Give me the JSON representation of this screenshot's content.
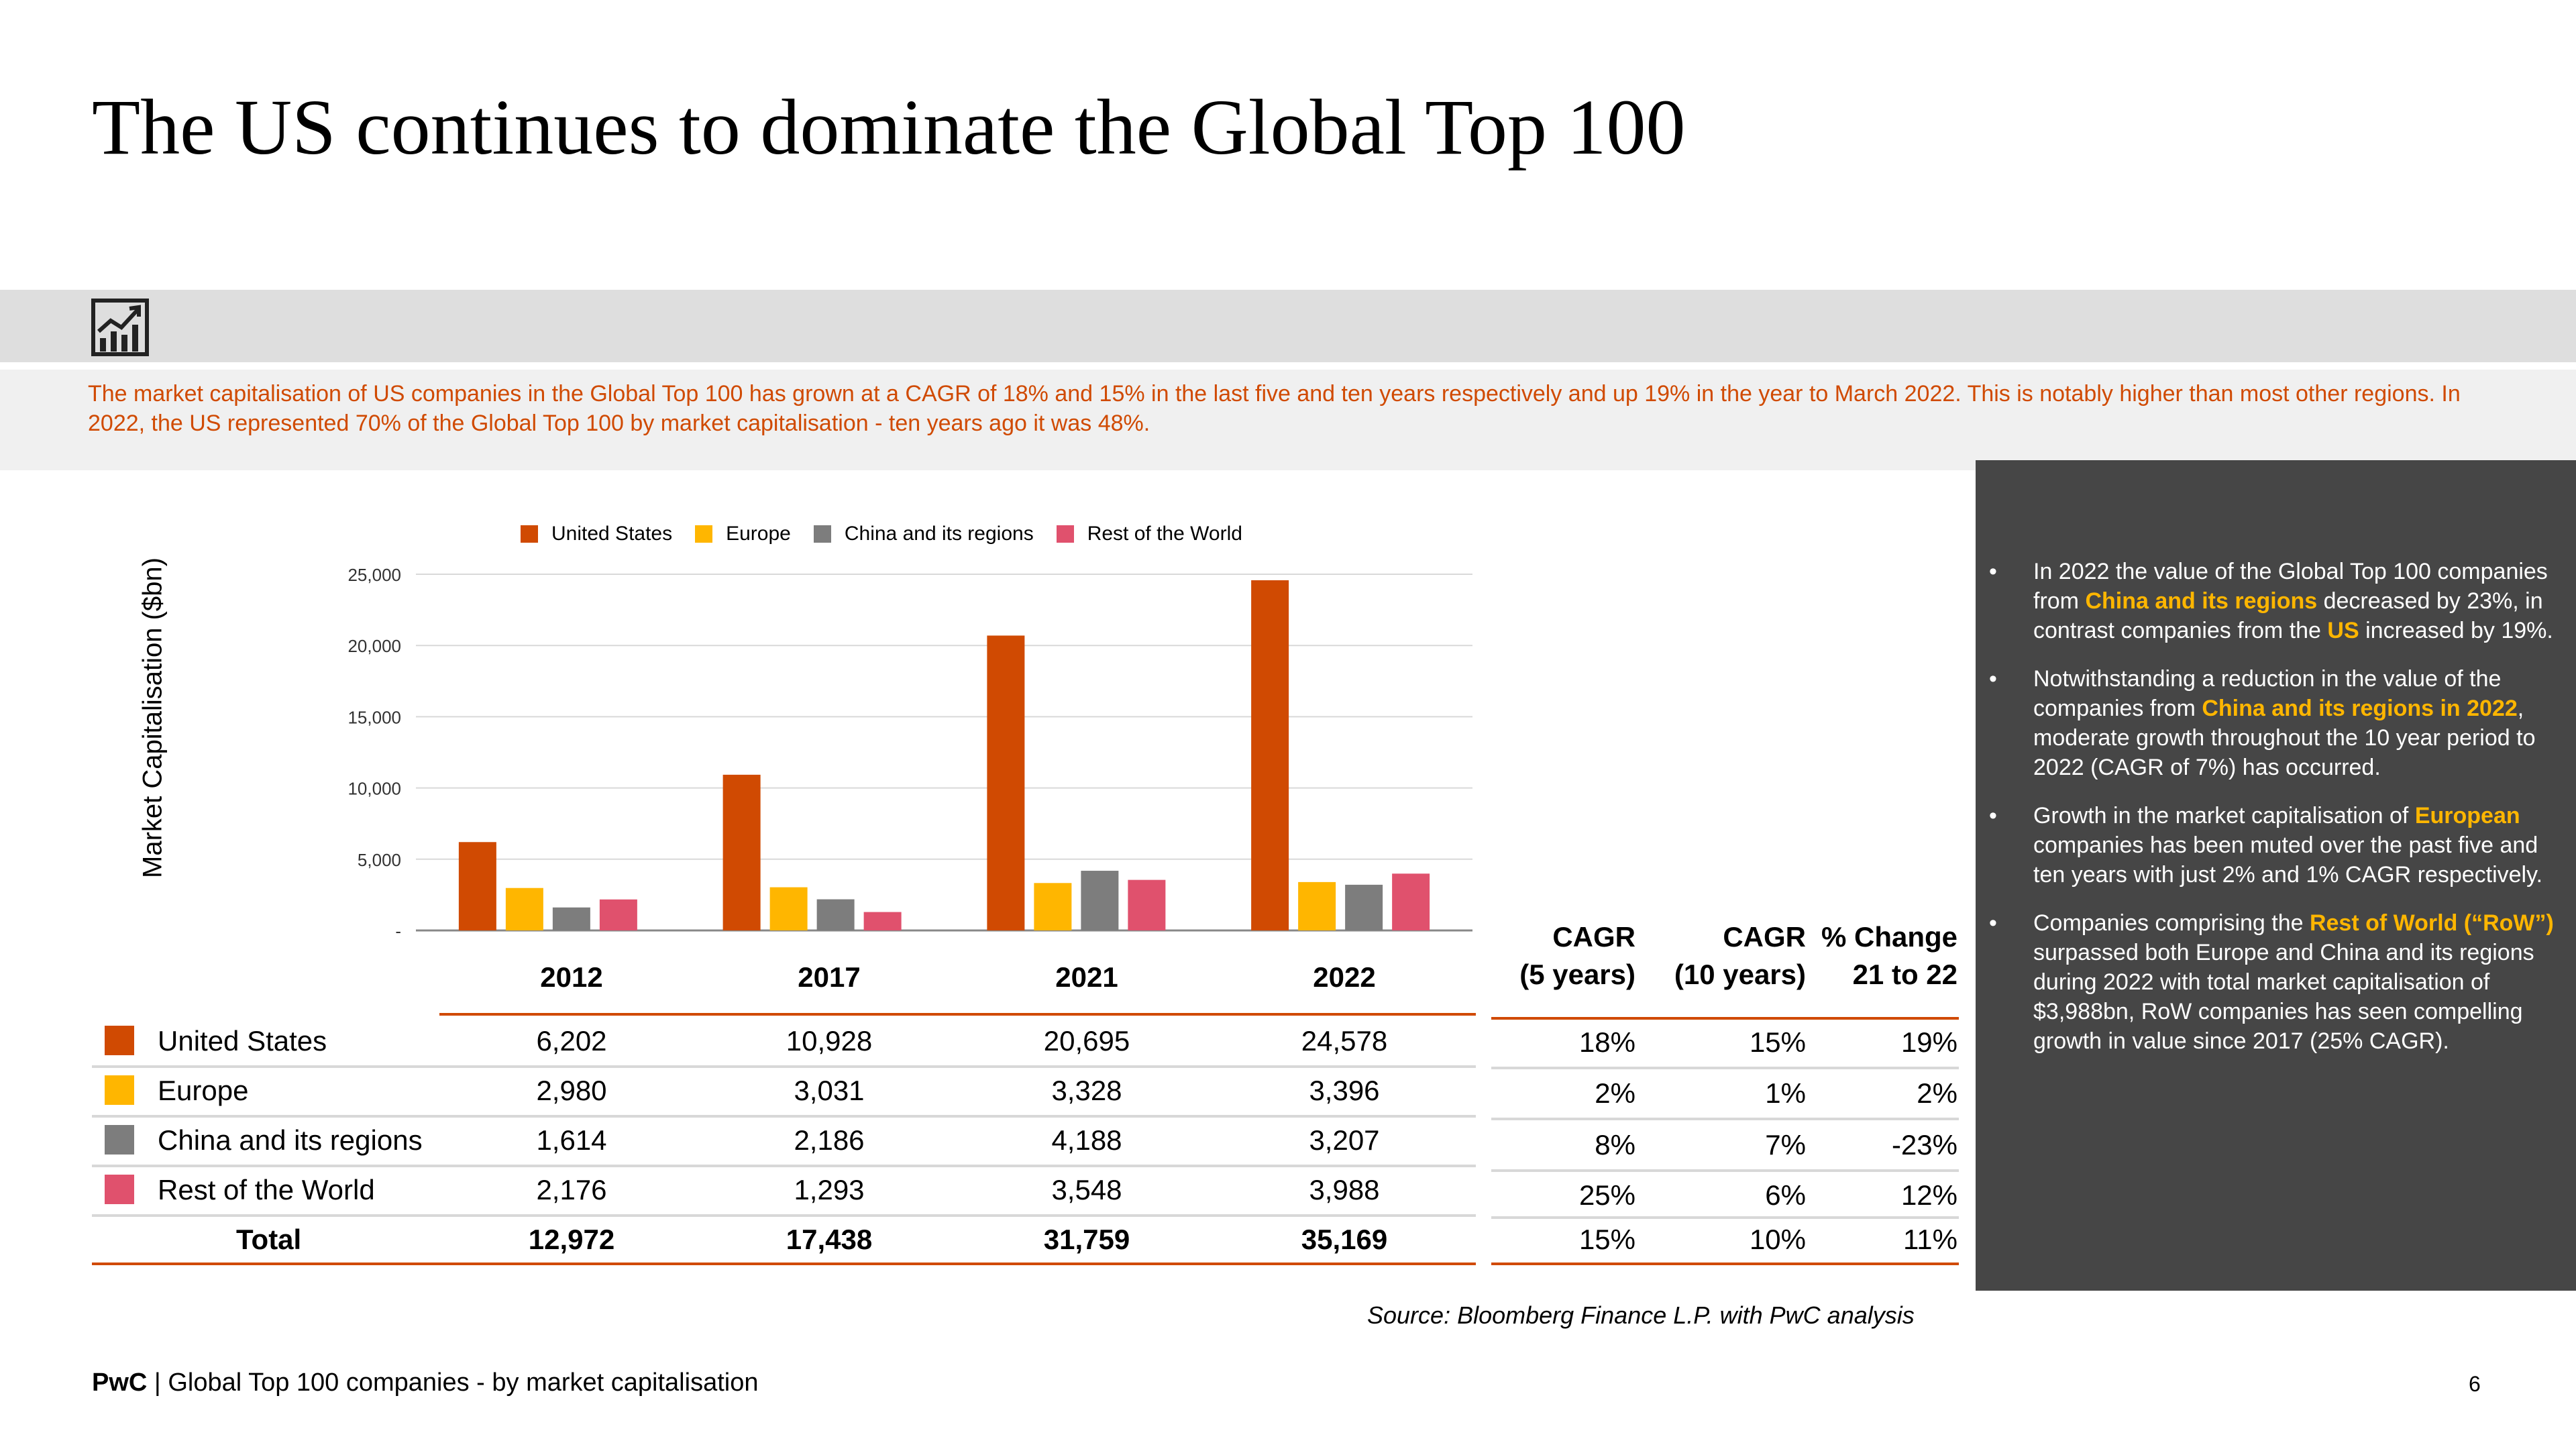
{
  "title": "The US continues to dominate the Global Top 100",
  "icon": "trend-chart-icon",
  "summary": "The market capitalisation of US companies in the Global Top 100 has grown at a CAGR of 18% and 15% in the last five and ten years respectively and up 19% in the year to March 2022. This is notably higher than most other regions. In 2022, the US represented 70% of the Global Top 100 by market capitalisation - ten years ago it was 48%.",
  "chart_data": {
    "type": "bar",
    "ylabel": "Market Capitalisation ($bn)",
    "ylim": [
      0,
      25000
    ],
    "yticks": [
      "-",
      "5,000",
      "10,000",
      "15,000",
      "20,000",
      "25,000"
    ],
    "grid": true,
    "legend_position": "top",
    "categories": [
      "2012",
      "2017",
      "2021",
      "2022"
    ],
    "series": [
      {
        "name": "United States",
        "color": "#d04a02",
        "values": [
          6202,
          10928,
          20695,
          24578
        ]
      },
      {
        "name": "Europe",
        "color": "#ffb600",
        "values": [
          2980,
          3031,
          3328,
          3396
        ]
      },
      {
        "name": "China and its regions",
        "color": "#7d7d7d",
        "values": [
          1614,
          2186,
          4188,
          3207
        ]
      },
      {
        "name": "Rest of the World",
        "color": "#e0516d",
        "values": [
          2176,
          1293,
          3548,
          3988
        ]
      }
    ]
  },
  "table": {
    "years": [
      "2012",
      "2017",
      "2021",
      "2022"
    ],
    "growth_headers": [
      {
        "line1": "CAGR",
        "line2": "(5 years)"
      },
      {
        "line1": "CAGR",
        "line2": "(10 years)"
      },
      {
        "line1": "% Change",
        "line2": "21 to 22"
      }
    ],
    "rows": [
      {
        "label": "United States",
        "color": "#d04a02",
        "values": [
          "6,202",
          "10,928",
          "20,695",
          "24,578"
        ],
        "growth": [
          "18%",
          "15%",
          "19%"
        ]
      },
      {
        "label": "Europe",
        "color": "#ffb600",
        "values": [
          "2,980",
          "3,031",
          "3,328",
          "3,396"
        ],
        "growth": [
          "2%",
          "1%",
          "2%"
        ]
      },
      {
        "label": "China and its regions",
        "color": "#7d7d7d",
        "values": [
          "1,614",
          "2,186",
          "4,188",
          "3,207"
        ],
        "growth": [
          "8%",
          "7%",
          "-23%"
        ]
      },
      {
        "label": "Rest of the World",
        "color": "#e0516d",
        "values": [
          "2,176",
          "1,293",
          "3,548",
          "3,988"
        ],
        "growth": [
          "25%",
          "6%",
          "12%"
        ]
      }
    ],
    "total": {
      "label": "Total",
      "values": [
        "12,972",
        "17,438",
        "31,759",
        "35,169"
      ],
      "growth": [
        "15%",
        "10%",
        "11%"
      ]
    }
  },
  "bullets": [
    [
      {
        "t": "In 2022 the value of the Global Top 100 companies from "
      },
      {
        "t": "China and its regions",
        "hl": true
      },
      {
        "t": " decreased by 23%, in contrast companies from the "
      },
      {
        "t": "US",
        "hl": true
      },
      {
        "t": " increased by 19%."
      }
    ],
    [
      {
        "t": "Notwithstanding a reduction in the value of the companies from "
      },
      {
        "t": "China and its regions in 2022",
        "hl": true
      },
      {
        "t": ", moderate growth throughout the 10 year period to 2022 (CAGR of 7%) has occurred."
      }
    ],
    [
      {
        "t": "Growth in the market capitalisation of "
      },
      {
        "t": "European",
        "hl": true
      },
      {
        "t": " companies has been muted over the past five and ten years with just 2% and 1% CAGR respectively."
      }
    ],
    [
      {
        "t": "Companies comprising the "
      },
      {
        "t": "Rest of World (“RoW”)",
        "hl": true
      },
      {
        "t": " surpassed both Europe and China and its regions during 2022 with total market capitalisation of $3,988bn, RoW companies has seen compelling growth in value since 2017 (25% CAGR)."
      }
    ]
  ],
  "bullet_marker": "•",
  "source": "Source: Bloomberg Finance L.P. with PwC analysis",
  "footer": {
    "brand": "PwC",
    "separator": " | ",
    "text": "Global Top 100 companies - by market capitalisation"
  },
  "page_number": "6"
}
